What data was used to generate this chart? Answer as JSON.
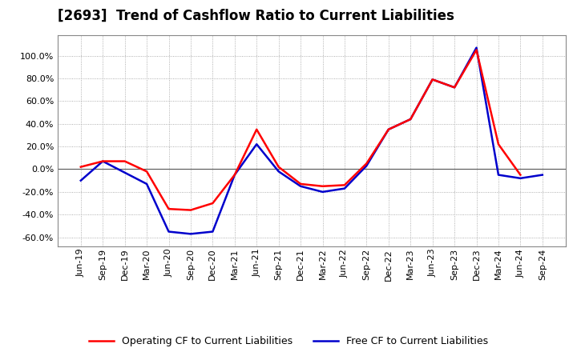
{
  "title": "[2693]  Trend of Cashflow Ratio to Current Liabilities",
  "labels": [
    "Jun-19",
    "Sep-19",
    "Dec-19",
    "Mar-20",
    "Jun-20",
    "Sep-20",
    "Dec-20",
    "Mar-21",
    "Jun-21",
    "Sep-21",
    "Dec-21",
    "Mar-22",
    "Jun-22",
    "Sep-22",
    "Dec-22",
    "Mar-23",
    "Jun-23",
    "Sep-23",
    "Dec-23",
    "Mar-24",
    "Jun-24",
    "Sep-24"
  ],
  "operating_cf": [
    2.0,
    7.0,
    7.0,
    -2.0,
    -35.0,
    -36.0,
    -30.0,
    -5.0,
    35.0,
    2.0,
    -13.0,
    -15.0,
    -14.0,
    5.0,
    35.0,
    44.0,
    79.0,
    72.0,
    105.0,
    22.0,
    -5.0,
    null
  ],
  "free_cf": [
    -10.0,
    7.0,
    -3.0,
    -13.0,
    -55.0,
    -57.0,
    -55.0,
    -5.0,
    22.0,
    -2.0,
    -15.0,
    -20.0,
    -17.0,
    3.0,
    35.0,
    44.0,
    79.0,
    72.0,
    107.0,
    -5.0,
    -8.0,
    -5.0
  ],
  "operating_color": "#ff0000",
  "free_color": "#0000cc",
  "background_color": "#ffffff",
  "grid_color": "#999999",
  "ylim": [
    -68,
    118
  ],
  "yticks": [
    -60.0,
    -40.0,
    -20.0,
    0.0,
    20.0,
    40.0,
    60.0,
    80.0,
    100.0
  ],
  "legend_op": "Operating CF to Current Liabilities",
  "legend_free": "Free CF to Current Liabilities",
  "title_fontsize": 12,
  "tick_fontsize": 8
}
